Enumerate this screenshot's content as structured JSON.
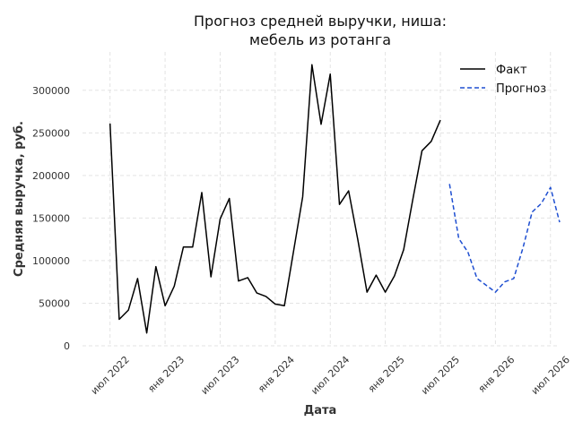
{
  "chart_data": {
    "type": "line",
    "title_lines": [
      "Прогноз средней выручки, ниша:",
      "мебель из ротанга"
    ],
    "xlabel": "Дата",
    "ylabel": "Средняя выручка, руб.",
    "ylim": [
      0,
      345000
    ],
    "xlim": [
      "2022-04",
      "2026-08"
    ],
    "y_ticks": [
      0,
      50000,
      100000,
      150000,
      200000,
      250000,
      300000
    ],
    "x_ticks": [
      {
        "date": "2022-07",
        "label": "июл 2022"
      },
      {
        "date": "2023-01",
        "label": "янв 2023"
      },
      {
        "date": "2023-07",
        "label": "июл 2023"
      },
      {
        "date": "2024-01",
        "label": "янв 2024"
      },
      {
        "date": "2024-07",
        "label": "июл 2024"
      },
      {
        "date": "2025-01",
        "label": "янв 2025"
      },
      {
        "date": "2025-07",
        "label": "июл 2025"
      },
      {
        "date": "2026-01",
        "label": "янв 2026"
      },
      {
        "date": "2026-07",
        "label": "июл 2026"
      }
    ],
    "grid": true,
    "legend_position": "top-right",
    "series": [
      {
        "name": "Факт",
        "color": "#000000",
        "style": "solid",
        "x": [
          "2022-07",
          "2022-08",
          "2022-09",
          "2022-10",
          "2022-11",
          "2022-12",
          "2023-01",
          "2023-02",
          "2023-03",
          "2023-04",
          "2023-05",
          "2023-06",
          "2023-07",
          "2023-08",
          "2023-09",
          "2023-10",
          "2023-11",
          "2023-12",
          "2024-01",
          "2024-02",
          "2024-03",
          "2024-04",
          "2024-05",
          "2024-06",
          "2024-07",
          "2024-08",
          "2024-09",
          "2024-10",
          "2024-11",
          "2024-12",
          "2025-01",
          "2025-02",
          "2025-03",
          "2025-04",
          "2025-05",
          "2025-06",
          "2025-07"
        ],
        "y": [
          261000,
          31000,
          42000,
          79000,
          15000,
          93000,
          47000,
          70000,
          116000,
          116000,
          180000,
          81000,
          149000,
          173000,
          76000,
          80000,
          62000,
          58000,
          49000,
          47000,
          111000,
          175000,
          330000,
          260000,
          319000,
          166000,
          182000,
          125000,
          63000,
          83000,
          63000,
          82000,
          113000,
          172000,
          229000,
          240000,
          265000
        ]
      },
      {
        "name": "Прогноз",
        "color": "#1f4fd1",
        "style": "dashed",
        "x": [
          "2025-08",
          "2025-09",
          "2025-10",
          "2025-11",
          "2025-12",
          "2026-01",
          "2026-02",
          "2026-03",
          "2026-04",
          "2026-05",
          "2026-06",
          "2026-07",
          "2026-08"
        ],
        "y": [
          190000,
          126000,
          110000,
          79000,
          71000,
          63000,
          75000,
          79000,
          115000,
          157000,
          167000,
          186000,
          145000
        ]
      }
    ]
  }
}
